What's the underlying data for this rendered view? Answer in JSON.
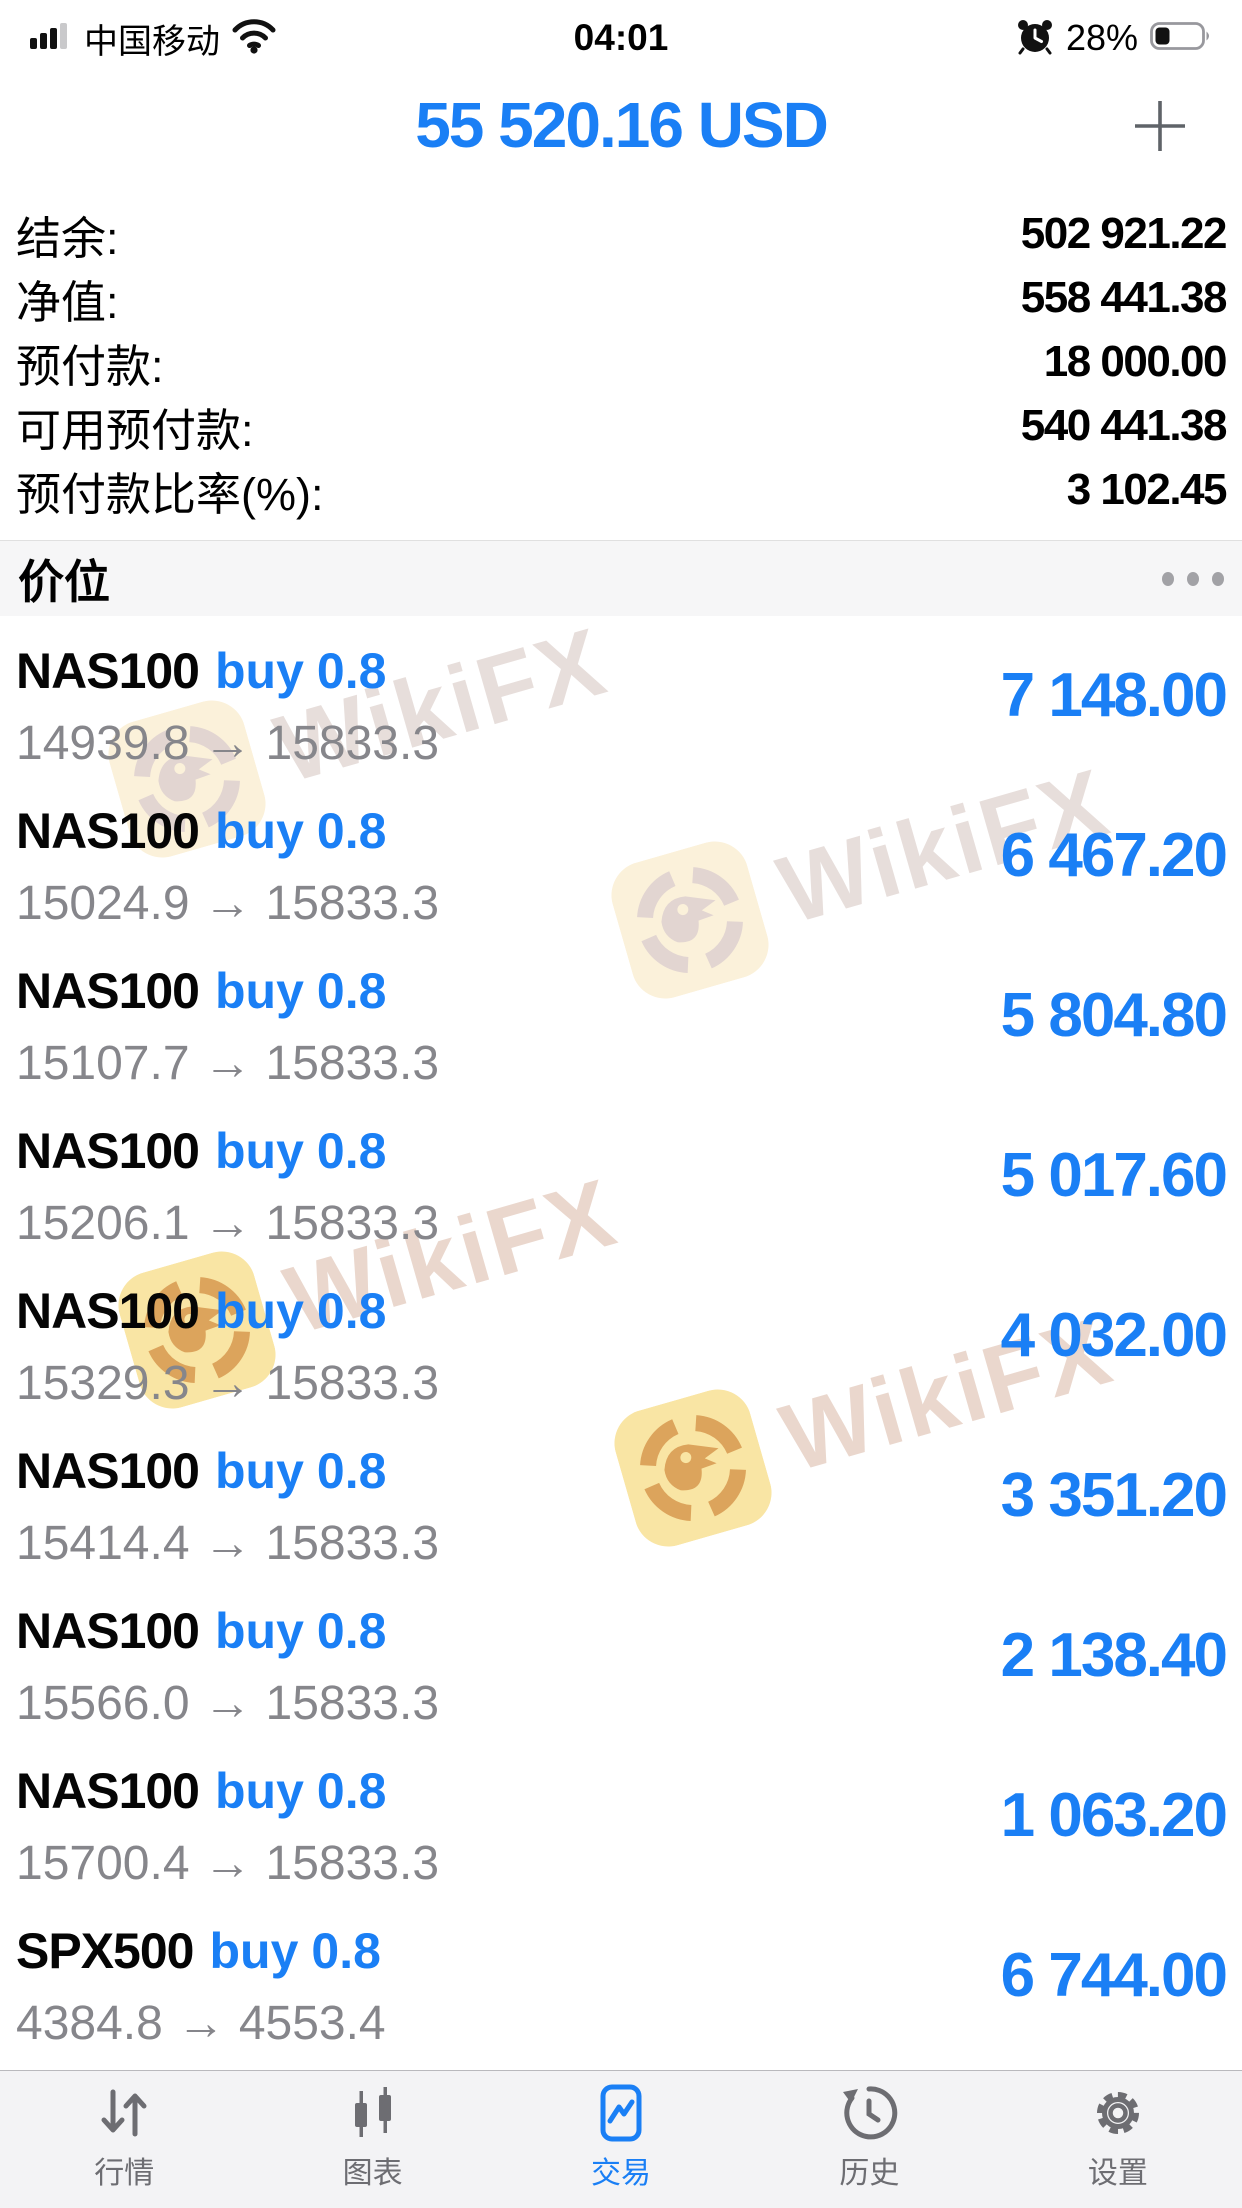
{
  "status_bar": {
    "carrier": "中国移动",
    "time": "04:01",
    "battery_percent": "28%"
  },
  "header": {
    "balance": "55 520.16 USD"
  },
  "account_summary": {
    "rows": [
      {
        "label": "结余:",
        "value": "502 921.22"
      },
      {
        "label": "净值:",
        "value": "558 441.38"
      },
      {
        "label": "预付款:",
        "value": "18 000.00"
      },
      {
        "label": "可用预付款:",
        "value": "540 441.38"
      },
      {
        "label": "预付款比率(%):",
        "value": "3 102.45"
      }
    ]
  },
  "positions_section": {
    "title": "价位"
  },
  "positions": [
    {
      "symbol": "NAS100",
      "side": "buy",
      "volume": "0.8",
      "open": "14939.8",
      "arrow": "→",
      "current": "15833.3",
      "profit": "7 148.00"
    },
    {
      "symbol": "NAS100",
      "side": "buy",
      "volume": "0.8",
      "open": "15024.9",
      "arrow": "→",
      "current": "15833.3",
      "profit": "6 467.20"
    },
    {
      "symbol": "NAS100",
      "side": "buy",
      "volume": "0.8",
      "open": "15107.7",
      "arrow": "→",
      "current": "15833.3",
      "profit": "5 804.80"
    },
    {
      "symbol": "NAS100",
      "side": "buy",
      "volume": "0.8",
      "open": "15206.1",
      "arrow": "→",
      "current": "15833.3",
      "profit": "5 017.60"
    },
    {
      "symbol": "NAS100",
      "side": "buy",
      "volume": "0.8",
      "open": "15329.3",
      "arrow": "→",
      "current": "15833.3",
      "profit": "4 032.00"
    },
    {
      "symbol": "NAS100",
      "side": "buy",
      "volume": "0.8",
      "open": "15414.4",
      "arrow": "→",
      "current": "15833.3",
      "profit": "3 351.20"
    },
    {
      "symbol": "NAS100",
      "side": "buy",
      "volume": "0.8",
      "open": "15566.0",
      "arrow": "→",
      "current": "15833.3",
      "profit": "2 138.40"
    },
    {
      "symbol": "NAS100",
      "side": "buy",
      "volume": "0.8",
      "open": "15700.4",
      "arrow": "→",
      "current": "15833.3",
      "profit": "1 063.20"
    },
    {
      "symbol": "SPX500",
      "side": "buy",
      "volume": "0.8",
      "open": "4384.8",
      "arrow": "→",
      "current": "4553.4",
      "profit": "6 744.00"
    }
  ],
  "watermark": {
    "text": "WikiFX"
  },
  "tab_bar": [
    {
      "id": "quotes",
      "label": "行情",
      "icon": "updown-arrows-icon",
      "active": false
    },
    {
      "id": "charts",
      "label": "图表",
      "icon": "candlestick-icon",
      "active": false
    },
    {
      "id": "trade",
      "label": "交易",
      "icon": "trade-chart-icon",
      "active": true
    },
    {
      "id": "history",
      "label": "历史",
      "icon": "history-clock-icon",
      "active": false
    },
    {
      "id": "settings",
      "label": "设置",
      "icon": "gear-icon",
      "active": false
    }
  ],
  "colors": {
    "accent": "#1a7ff5",
    "secondary_text": "#86868b",
    "tab_inactive": "#6d6d72"
  }
}
